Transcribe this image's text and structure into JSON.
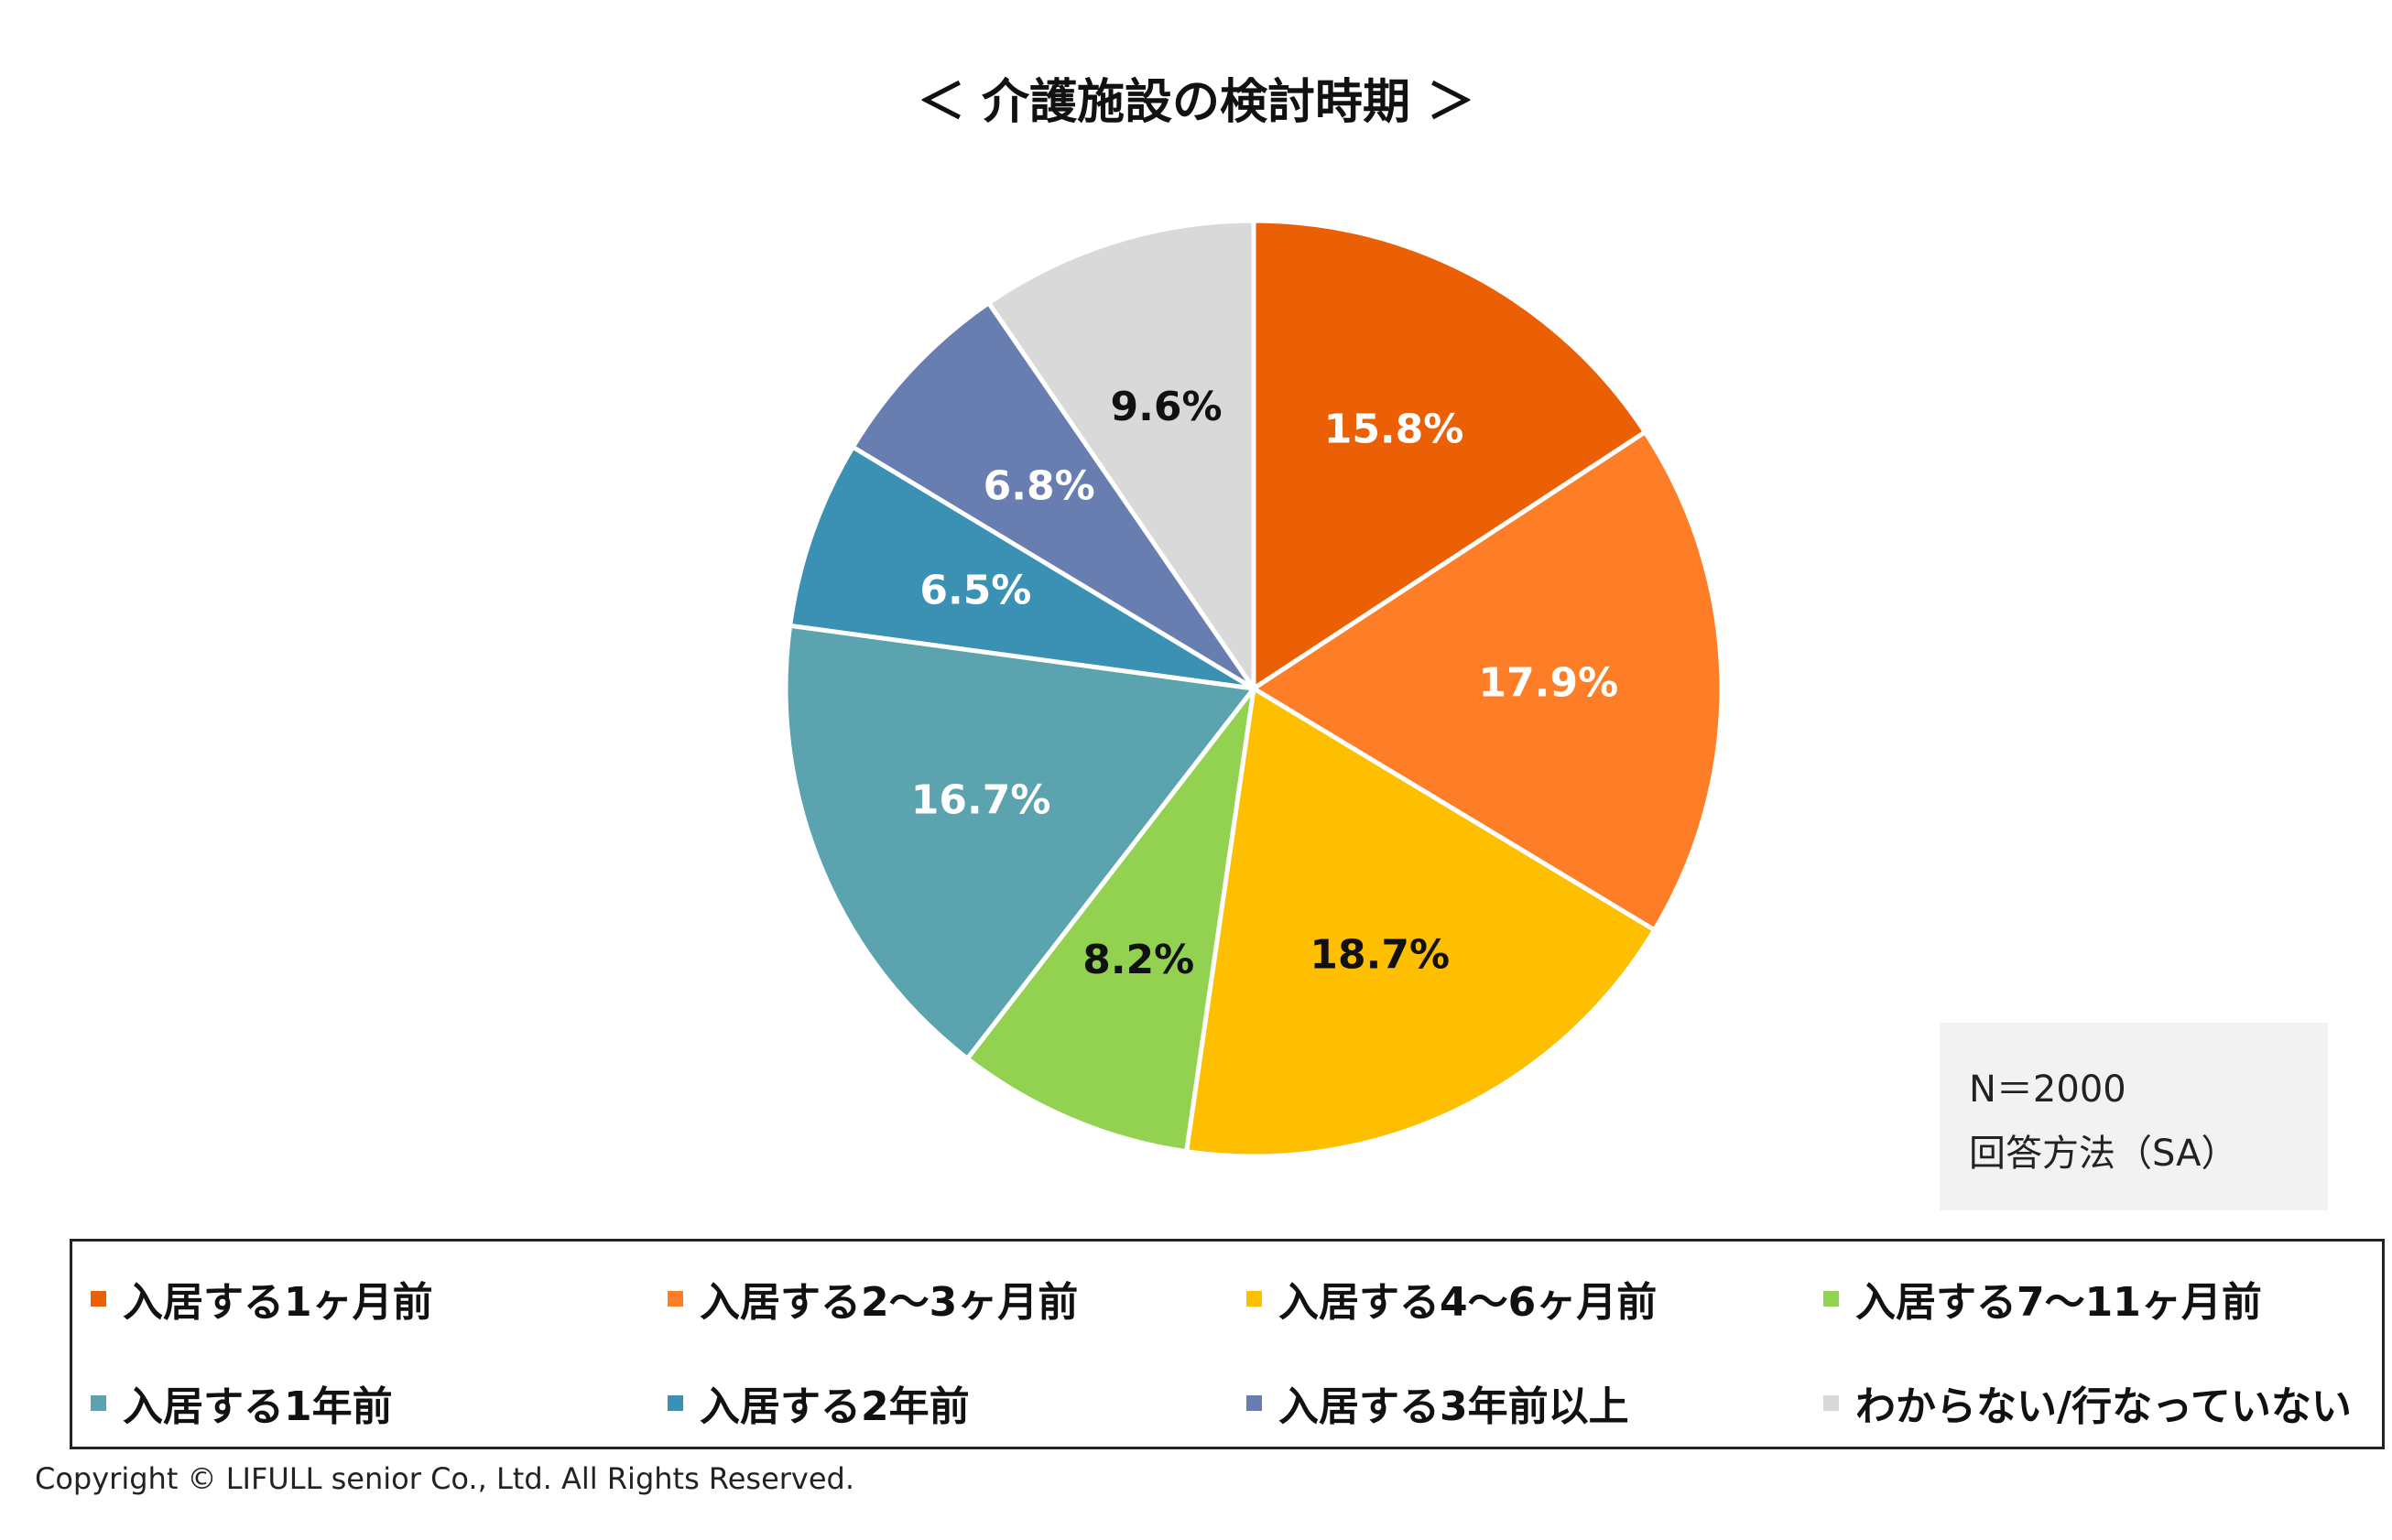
{
  "chart_data": {
    "type": "pie",
    "title": "＜ 介護施設の検討時期 ＞",
    "categories": [
      "入居する1ヶ月前",
      "入居する2〜3ヶ月前",
      "入居する4〜6ヶ月前",
      "入居する7〜11ヶ月前",
      "入居する1年前",
      "入居する2年前",
      "入居する3年前以上",
      "わからない/行なっていない"
    ],
    "values": [
      15.8,
      17.9,
      18.7,
      8.2,
      16.7,
      6.5,
      6.8,
      9.6
    ],
    "labels": [
      "15.8%",
      "17.9%",
      "18.7%",
      "8.2%",
      "16.7%",
      "6.5%",
      "6.8%",
      "9.6%"
    ],
    "colors": [
      "#eb6005",
      "#fd7e27",
      "#fdbf00",
      "#93d150",
      "#5ba3af",
      "#3a91b3",
      "#697eb0",
      "#d9d9d9"
    ],
    "label_colors": [
      "#ffffff",
      "#ffffff",
      "#111111",
      "#111111",
      "#ffffff",
      "#ffffff",
      "#ffffff",
      "#111111"
    ],
    "legend_position": "bottom",
    "start_angle": "12 o'clock, clockwise"
  },
  "note": {
    "sample_size": "N＝2000",
    "method": "回答方法（SA）"
  },
  "copyright": "Copyright © LIFULL senior Co., Ltd. All Rights Reserved."
}
